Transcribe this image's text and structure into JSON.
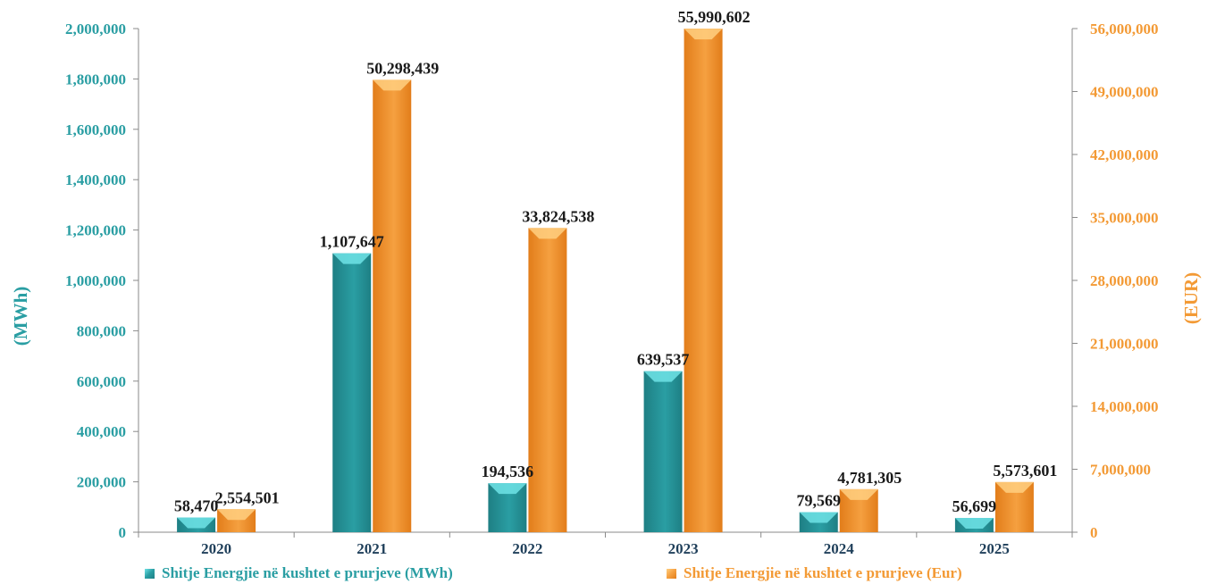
{
  "colors": {
    "mwh": "#2a9ea3",
    "mwh_dark": "#1e7f84",
    "mwh_top": "#6fe3e6",
    "eur": "#f5a040",
    "eur_dark": "#e27d1a",
    "eur_top": "#ffcf80",
    "left_axis": "#2a9ea3",
    "right_axis": "#f39a35"
  },
  "chart_data": {
    "type": "bar",
    "categories": [
      "2020",
      "2021",
      "2022",
      "2023",
      "2024",
      "2025"
    ],
    "series": [
      {
        "name": "Shitje  Energjie në kushtet e prurjeve (MWh)",
        "axis": "left",
        "values": [
          58470,
          1107647,
          194536,
          639537,
          79569,
          56699
        ],
        "labels": [
          "58,470",
          "1,107,647",
          "194,536",
          "639,537",
          "79,569",
          "56,699"
        ]
      },
      {
        "name": "Shitje  Energjie në kushtet e prurjeve (Eur)",
        "axis": "right",
        "values": [
          2554501,
          50298439,
          33824538,
          55990602,
          4781305,
          5573601
        ],
        "labels": [
          "2,554,501",
          "50,298,439",
          "33,824,538",
          "55,990,602",
          "4,781,305",
          "5,573,601"
        ]
      }
    ],
    "ylabel_left": "(MWh)",
    "ylabel_right": "(EUR)",
    "ylim_left": [
      0,
      2000000
    ],
    "ylim_right": [
      0,
      56000000
    ],
    "left_ticks": [
      "0",
      "200,000",
      "400,000",
      "600,000",
      "800,000",
      "1,000,000",
      "1,200,000",
      "1,400,000",
      "1,600,000",
      "1,800,000",
      "2,000,000"
    ],
    "right_ticks": [
      "0",
      "7,000,000",
      "14,000,000",
      "21,000,000",
      "28,000,000",
      "35,000,000",
      "42,000,000",
      "49,000,000",
      "56,000,000"
    ],
    "legend_position": "bottom",
    "grid": false
  }
}
